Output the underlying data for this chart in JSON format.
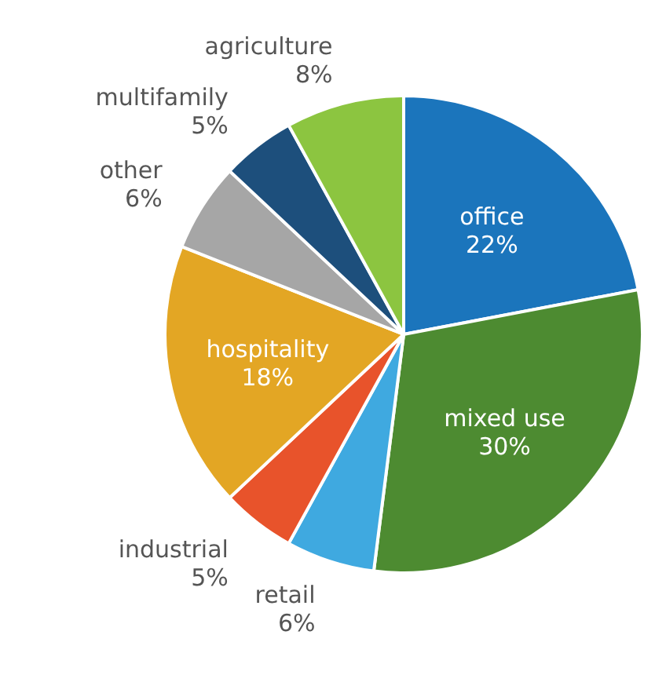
{
  "chart_data": {
    "type": "pie",
    "categories": [
      "office",
      "mixed use",
      "retail",
      "industrial",
      "hospitality",
      "other",
      "multifamily",
      "agriculture"
    ],
    "values": [
      22,
      30,
      6,
      5,
      18,
      6,
      5,
      8
    ],
    "value_labels": [
      "22%",
      "30%",
      "6%",
      "5%",
      "18%",
      "6%",
      "5%",
      "8%"
    ],
    "colors": [
      "#1b75bc",
      "#4d8b31",
      "#3fa9e0",
      "#e8532b",
      "#e3a624",
      "#a6a6a6",
      "#1d4f7c",
      "#8cc540"
    ],
    "legend": false
  }
}
